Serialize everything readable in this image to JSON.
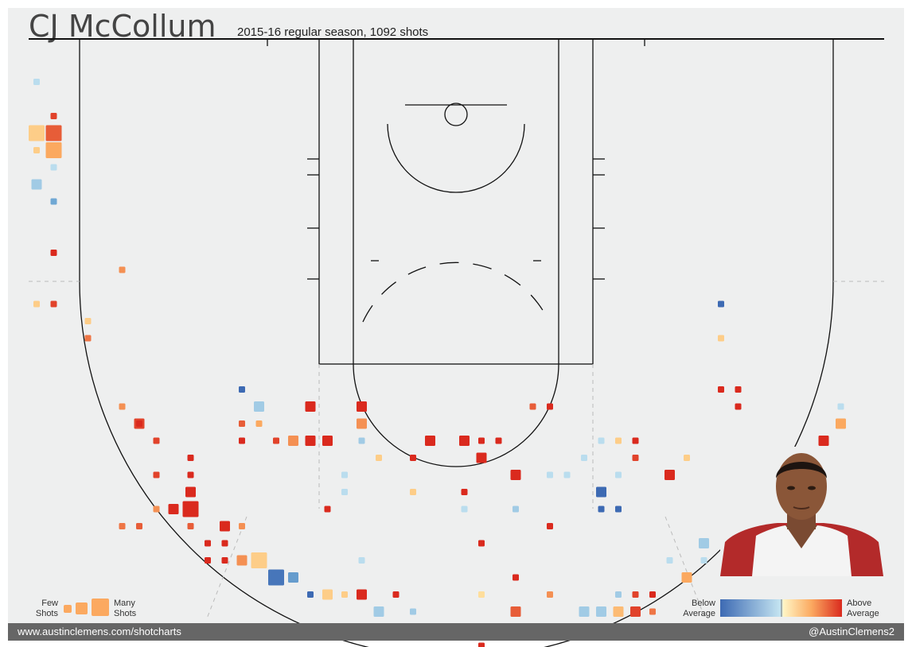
{
  "header": {
    "title": "CJ McCollum",
    "subtitle": "2015-16 regular season, 1092 shots"
  },
  "legend": {
    "size_left_line1": "Few",
    "size_left_line2": "Shots",
    "size_right_line1": "Many",
    "size_right_line2": "Shots",
    "color_left_line1": "Below",
    "color_left_line2": "Average",
    "color_right_line1": "Above",
    "color_right_line2": "Average"
  },
  "footer": {
    "left": "www.austinclemens.com/shotcharts",
    "right": "@AustinClemens2"
  },
  "colors": {
    "background": "#eeefef",
    "court_line": "#111111",
    "footer_bar": "#666666"
  },
  "chart_data": {
    "type": "heatmap",
    "encoding": {
      "size": "shot frequency",
      "color": "efficiency vs league average (-1 below, +1 above)"
    },
    "bins": [
      {
        "col": 0,
        "row": 0,
        "size": 1,
        "value": -0.2
      },
      {
        "col": 1,
        "row": 2,
        "size": 1,
        "value": 0.9
      },
      {
        "col": 1,
        "row": 4,
        "size": 3,
        "value": 0.5
      },
      {
        "col": 0,
        "row": 4,
        "size": 1,
        "value": 0.3
      },
      {
        "col": 0,
        "row": 3,
        "size": 3,
        "value": 0.3
      },
      {
        "col": 1,
        "row": 3,
        "size": 3,
        "value": 0.8
      },
      {
        "col": 1,
        "row": 5,
        "size": 1,
        "value": -0.2
      },
      {
        "col": 0,
        "row": 6,
        "size": 2,
        "value": -0.3
      },
      {
        "col": 1,
        "row": 7,
        "size": 1,
        "value": -0.5
      },
      {
        "col": 1,
        "row": 10,
        "size": 1,
        "value": 1.0
      },
      {
        "col": 0,
        "row": 13,
        "size": 1,
        "value": 0.3
      },
      {
        "col": 1,
        "row": 13,
        "size": 1,
        "value": 0.9
      },
      {
        "col": 3,
        "row": 15,
        "size": 1,
        "value": 0.7
      },
      {
        "col": 6,
        "row": 20,
        "size": 2,
        "value": 0.9
      },
      {
        "col": 7,
        "row": 21,
        "size": 1,
        "value": 0.9
      },
      {
        "col": 7,
        "row": 23,
        "size": 1,
        "value": 0.9
      },
      {
        "col": 9,
        "row": 24,
        "size": 1,
        "value": 0.7
      },
      {
        "col": 8,
        "row": 25,
        "size": 2,
        "value": 1.0
      },
      {
        "col": 9,
        "row": 25,
        "size": 3,
        "value": 1.0
      },
      {
        "col": 6,
        "row": 26,
        "size": 1,
        "value": 0.8
      },
      {
        "col": 9,
        "row": 26,
        "size": 1,
        "value": 0.8
      },
      {
        "col": 11,
        "row": 26,
        "size": 2,
        "value": 1.0
      },
      {
        "col": 10,
        "row": 27,
        "size": 1,
        "value": 1.0
      },
      {
        "col": 11,
        "row": 27,
        "size": 1,
        "value": 1.0
      },
      {
        "col": 12,
        "row": 28,
        "size": 2,
        "value": 0.6
      },
      {
        "col": 13,
        "row": 28,
        "size": 3,
        "value": 0.3
      },
      {
        "col": 15,
        "row": 29,
        "size": 2,
        "value": -0.6
      },
      {
        "col": 14,
        "row": 29,
        "size": 3,
        "value": -0.9
      },
      {
        "col": 16,
        "row": 30,
        "size": 1,
        "value": -1.0
      },
      {
        "col": 17,
        "row": 30,
        "size": 2,
        "value": 0.3
      },
      {
        "col": 18,
        "row": 30,
        "size": 1,
        "value": 0.3
      },
      {
        "col": 19,
        "row": 30,
        "size": 2,
        "value": 1.0
      },
      {
        "col": 21,
        "row": 30,
        "size": 1,
        "value": 1.0
      },
      {
        "col": 20,
        "row": 31,
        "size": 2,
        "value": -0.3
      },
      {
        "col": 22,
        "row": 31,
        "size": 1,
        "value": -0.3
      },
      {
        "col": 25,
        "row": 32,
        "size": 2,
        "value": 0.4
      },
      {
        "col": 26,
        "row": 33,
        "size": 1,
        "value": 1.0
      },
      {
        "col": 23,
        "row": 32,
        "size": 1,
        "value": -0.3
      },
      {
        "col": 28,
        "row": 31,
        "size": 2,
        "value": 0.8
      },
      {
        "col": 28,
        "row": 29,
        "size": 1,
        "value": 1.0
      },
      {
        "col": 26,
        "row": 30,
        "size": 1,
        "value": 0.2
      },
      {
        "col": 30,
        "row": 30,
        "size": 1,
        "value": 0.6
      },
      {
        "col": 31,
        "row": 32,
        "size": 2,
        "value": 0.3
      },
      {
        "col": 32,
        "row": 31,
        "size": 2,
        "value": -0.3
      },
      {
        "col": 33,
        "row": 31,
        "size": 2,
        "value": -0.3
      },
      {
        "col": 34,
        "row": 31,
        "size": 2,
        "value": 0.4
      },
      {
        "col": 35,
        "row": 31,
        "size": 2,
        "value": 0.9
      },
      {
        "col": 36,
        "row": 31,
        "size": 1,
        "value": 0.7
      },
      {
        "col": 35,
        "row": 30,
        "size": 1,
        "value": 0.9
      },
      {
        "col": 36,
        "row": 30,
        "size": 1,
        "value": 1.0
      },
      {
        "col": 34,
        "row": 30,
        "size": 1,
        "value": -0.3
      },
      {
        "col": 30,
        "row": 32,
        "size": 2,
        "value": 0.7
      },
      {
        "col": 31,
        "row": 32,
        "size": 1,
        "value": 0.3
      },
      {
        "col": 32,
        "row": 32,
        "size": 1,
        "value": -1.0
      },
      {
        "col": 33,
        "row": 32,
        "size": 2,
        "value": -0.3
      },
      {
        "col": 34,
        "row": 32,
        "size": 2,
        "value": -0.3
      },
      {
        "col": 35,
        "row": 32,
        "size": 1,
        "value": 0.2
      },
      {
        "col": 38,
        "row": 29,
        "size": 2,
        "value": 0.5
      },
      {
        "col": 37,
        "row": 28,
        "size": 1,
        "value": -0.2
      },
      {
        "col": 39,
        "row": 28,
        "size": 1,
        "value": -0.2
      },
      {
        "col": 39,
        "row": 27,
        "size": 2,
        "value": -0.3
      },
      {
        "col": 41,
        "row": 27,
        "size": 2,
        "value": 0.3
      },
      {
        "col": 41,
        "row": 26,
        "size": 1,
        "value": -0.2
      },
      {
        "col": 42,
        "row": 26,
        "size": 1,
        "value": 0.7
      },
      {
        "col": 41,
        "row": 25,
        "size": 2,
        "value": -0.2
      },
      {
        "col": 43,
        "row": 25,
        "size": 1,
        "value": -0.2
      },
      {
        "col": 42,
        "row": 25,
        "size": 1,
        "value": 0.6
      },
      {
        "col": 41,
        "row": 24,
        "size": 2,
        "value": -0.3
      },
      {
        "col": 44,
        "row": 24,
        "size": 2,
        "value": 1.0
      },
      {
        "col": 44,
        "row": 23,
        "size": 1,
        "value": 1.0
      },
      {
        "col": 45,
        "row": 22,
        "size": 1,
        "value": 1.0
      },
      {
        "col": 46,
        "row": 21,
        "size": 2,
        "value": 1.0
      },
      {
        "col": 47,
        "row": 20,
        "size": 2,
        "value": 0.5
      },
      {
        "col": 47,
        "row": 19,
        "size": 1,
        "value": -0.2
      },
      {
        "col": 40,
        "row": 18,
        "size": 1,
        "value": 1.0
      },
      {
        "col": 41,
        "row": 18,
        "size": 1,
        "value": 1.0
      },
      {
        "col": 37,
        "row": 23,
        "size": 2,
        "value": 1.0
      },
      {
        "col": 35,
        "row": 21,
        "size": 1,
        "value": 1.0
      },
      {
        "col": 38,
        "row": 22,
        "size": 1,
        "value": 0.3
      },
      {
        "col": 33,
        "row": 24,
        "size": 2,
        "value": -1.0
      },
      {
        "col": 32,
        "row": 22,
        "size": 1,
        "value": -0.2
      },
      {
        "col": 33,
        "row": 21,
        "size": 1,
        "value": -0.2
      },
      {
        "col": 34,
        "row": 21,
        "size": 1,
        "value": 0.3
      },
      {
        "col": 35,
        "row": 22,
        "size": 1,
        "value": 0.9
      },
      {
        "col": 34,
        "row": 23,
        "size": 1,
        "value": -0.2
      },
      {
        "col": 31,
        "row": 23,
        "size": 1,
        "value": -0.2
      },
      {
        "col": 33,
        "row": 25,
        "size": 1,
        "value": -1.0
      },
      {
        "col": 34,
        "row": 25,
        "size": 1,
        "value": -1.0
      },
      {
        "col": 26,
        "row": 27,
        "size": 1,
        "value": 1.0
      },
      {
        "col": 25,
        "row": 25,
        "size": 1,
        "value": -0.2
      },
      {
        "col": 25,
        "row": 24,
        "size": 1,
        "value": 1.0
      },
      {
        "col": 26,
        "row": 22,
        "size": 2,
        "value": 1.0
      },
      {
        "col": 28,
        "row": 23,
        "size": 2,
        "value": 1.0
      },
      {
        "col": 25,
        "row": 21,
        "size": 2,
        "value": 1.0
      },
      {
        "col": 27,
        "row": 21,
        "size": 1,
        "value": 1.0
      },
      {
        "col": 26,
        "row": 21,
        "size": 1,
        "value": 1.0
      },
      {
        "col": 23,
        "row": 21,
        "size": 2,
        "value": 1.0
      },
      {
        "col": 22,
        "row": 22,
        "size": 1,
        "value": 1.0
      },
      {
        "col": 20,
        "row": 22,
        "size": 1,
        "value": 0.3
      },
      {
        "col": 19,
        "row": 21,
        "size": 1,
        "value": -0.3
      },
      {
        "col": 17,
        "row": 21,
        "size": 2,
        "value": 1.0
      },
      {
        "col": 16,
        "row": 21,
        "size": 2,
        "value": 1.0
      },
      {
        "col": 15,
        "row": 21,
        "size": 2,
        "value": 0.6
      },
      {
        "col": 14,
        "row": 21,
        "size": 1,
        "value": 0.9
      },
      {
        "col": 12,
        "row": 21,
        "size": 1,
        "value": 1.0
      },
      {
        "col": 12,
        "row": 20,
        "size": 1,
        "value": 0.8
      },
      {
        "col": 13,
        "row": 19,
        "size": 2,
        "value": -0.3
      },
      {
        "col": 12,
        "row": 18,
        "size": 1,
        "value": -1.0
      },
      {
        "col": 16,
        "row": 19,
        "size": 2,
        "value": 1.0
      },
      {
        "col": 19,
        "row": 19,
        "size": 2,
        "value": 1.0
      },
      {
        "col": 19,
        "row": 20,
        "size": 2,
        "value": 0.6
      },
      {
        "col": 18,
        "row": 23,
        "size": 1,
        "value": -0.2
      },
      {
        "col": 18,
        "row": 24,
        "size": 1,
        "value": -0.2
      },
      {
        "col": 17,
        "row": 25,
        "size": 1,
        "value": 1.0
      },
      {
        "col": 9,
        "row": 23,
        "size": 1,
        "value": 1.0
      },
      {
        "col": 9,
        "row": 22,
        "size": 1,
        "value": 1.0
      },
      {
        "col": 6,
        "row": 20,
        "size": 1,
        "value": 1.0
      },
      {
        "col": 5,
        "row": 19,
        "size": 1,
        "value": 0.6
      },
      {
        "col": 12,
        "row": 26,
        "size": 1,
        "value": 0.6
      },
      {
        "col": 7,
        "row": 25,
        "size": 1,
        "value": 0.6
      },
      {
        "col": 5,
        "row": 26,
        "size": 1,
        "value": 0.7
      },
      {
        "col": 10,
        "row": 28,
        "size": 1,
        "value": 1.0
      },
      {
        "col": 11,
        "row": 28,
        "size": 1,
        "value": 1.0
      },
      {
        "col": 9,
        "row": 24,
        "size": 2,
        "value": 1.0
      },
      {
        "col": 5,
        "row": 11,
        "size": 1,
        "value": 0.6
      },
      {
        "col": 3,
        "row": 14,
        "size": 1,
        "value": 0.3
      },
      {
        "col": 13,
        "row": 20,
        "size": 1,
        "value": 0.5
      },
      {
        "col": 22,
        "row": 24,
        "size": 1,
        "value": 0.3
      },
      {
        "col": 40,
        "row": 15,
        "size": 1,
        "value": 0.3
      },
      {
        "col": 40,
        "row": 13,
        "size": 1,
        "value": -1.0
      },
      {
        "col": 41,
        "row": 19,
        "size": 1,
        "value": 1.0
      },
      {
        "col": 29,
        "row": 19,
        "size": 1,
        "value": 0.8
      },
      {
        "col": 30,
        "row": 19,
        "size": 1,
        "value": 1.0
      },
      {
        "col": 19,
        "row": 28,
        "size": 1,
        "value": -0.2
      },
      {
        "col": 28,
        "row": 25,
        "size": 1,
        "value": -0.3
      },
      {
        "col": 30,
        "row": 26,
        "size": 1,
        "value": 1.0
      },
      {
        "col": 30,
        "row": 23,
        "size": 1,
        "value": -0.2
      }
    ]
  }
}
